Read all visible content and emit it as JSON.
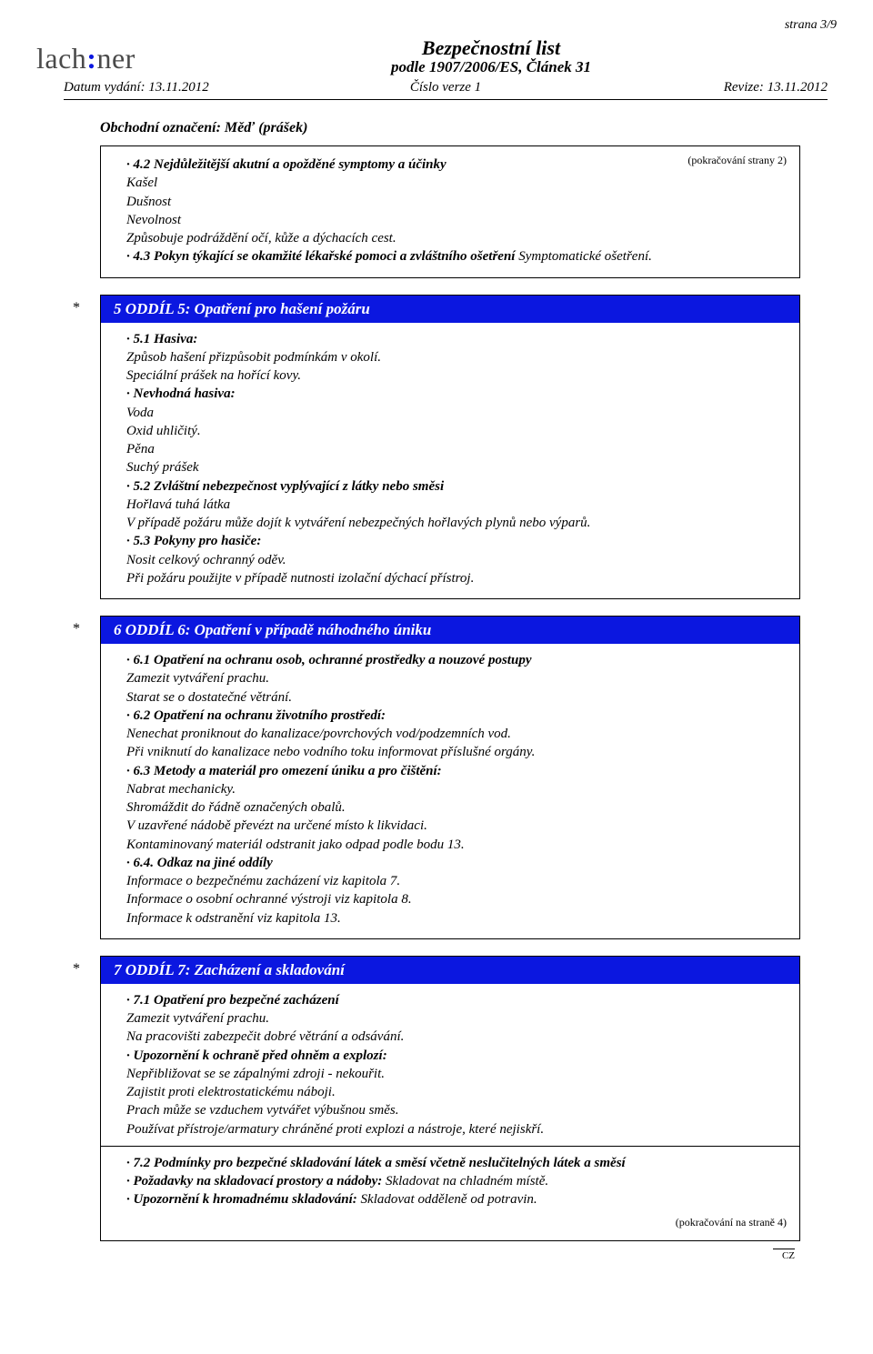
{
  "page_number_label": "strana 3/9",
  "logo": {
    "part1": "lach",
    "colon": ":",
    "part2": "ner"
  },
  "doc_title": "Bezpečnostní list",
  "doc_subtitle": "podle 1907/2006/ES, Článek 31",
  "meta": {
    "issue_date_label": "Datum vydání: 13.11.2012",
    "version_label": "Číslo verze 1",
    "revision_label": "Revize: 13.11.2012"
  },
  "product_name": "Obchodní označení: Měď (prášek)",
  "cont_from": "(pokračování strany 2)",
  "sec4": {
    "h42": "4.2 Nejdůležitější akutní a opožděné symptomy a účinky",
    "s1": "Kašel",
    "s2": "Dušnost",
    "s3": "Nevolnost",
    "s4": "Způsobuje podráždění očí, kůže a dýchacích cest.",
    "h43a": "4.3 Pokyn týkající se okamžité lékařské pomoci a zvláštního ošetření",
    "h43b": " Symptomatické ošetření."
  },
  "sec5": {
    "title": "5 ODDÍL 5: Opatření pro hašení požáru",
    "h51": "5.1 Hasiva:",
    "l1": "Způsob hašení přizpůsobit podmínkám v okolí.",
    "l2": "Speciální prášek na hořící kovy.",
    "h_nev": "Nevhodná hasiva:",
    "l3": "Voda",
    "l4": "Oxid uhličitý.",
    "l5": "Pěna",
    "l6": "Suchý prášek",
    "h52": "5.2 Zvláštní nebezpečnost vyplývající z látky nebo směsi",
    "l7": "Hořlavá tuhá látka",
    "l8": "V případě požáru může dojít k vytváření nebezpečných hořlavých plynů nebo výparů.",
    "h53": "5.3 Pokyny pro hasiče:",
    "l9": "Nosit celkový ochranný oděv.",
    "l10": "Při požáru použijte v případě nutnosti izolační dýchací přístroj."
  },
  "sec6": {
    "title": "6 ODDÍL 6: Opatření v případě náhodného úniku",
    "h61": "6.1 Opatření na ochranu osob, ochranné prostředky a nouzové postupy",
    "l1": "Zamezit vytváření prachu.",
    "l2": "Starat se o dostatečné větrání.",
    "h62": "6.2 Opatření na ochranu životního prostředí:",
    "l3": "Nenechat proniknout do kanalizace/povrchových vod/podzemních vod.",
    "l4": "Při vniknutí do kanalizace nebo vodního toku informovat příslušné orgány.",
    "h63": "6.3 Metody a materiál pro omezení úniku a pro čištění:",
    "l5": "Nabrat mechanicky.",
    "l6": "Shromáždit do řádně označených obalů.",
    "l7": "V uzavřené nádobě převézt na určené místo k likvidaci.",
    "l8": "Kontaminovaný materiál odstranit jako odpad podle bodu 13.",
    "h64": "6.4. Odkaz na jiné oddíly",
    "l9": "Informace o bezpečnému zacházení viz kapitola 7.",
    "l10": "Informace o osobní ochranné výstroji viz kapitola 8.",
    "l11": "Informace k odstranění viz kapitola 13."
  },
  "sec7": {
    "title": "7 ODDÍL 7: Zacházení a skladování",
    "h71": "7.1 Opatření pro bezpečné zacházení",
    "l1": "Zamezit vytváření prachu.",
    "l2": "Na pracovišti zabezpečit dobré větrání a odsávání.",
    "h_upoz": "Upozornění k ochraně před ohněm a explozí:",
    "l3": "Nepřibližovat se se zápalnými zdroji - nekouřit.",
    "l4": "Zajistit proti elektrostatickému náboji.",
    "l5": "Prach může se vzduchem vytvářet výbušnou směs.",
    "l6": "Používat přístroje/armatury chráněné proti explozi a nástroje, které nejiskří.",
    "h72": "7.2 Podmínky pro bezpečné skladování látek a směsí včetně neslučitelných látek a směsí",
    "h_poz_a": "Požadavky na skladovací prostory a nádoby:",
    "h_poz_b": " Skladovat na chladném místě.",
    "h_hrom_a": "Upozornění k hromadnému skladování:",
    "h_hrom_b": " Skladovat odděleně od potravin."
  },
  "cont_to": "(pokračování na straně 4)",
  "lang": "CZ"
}
